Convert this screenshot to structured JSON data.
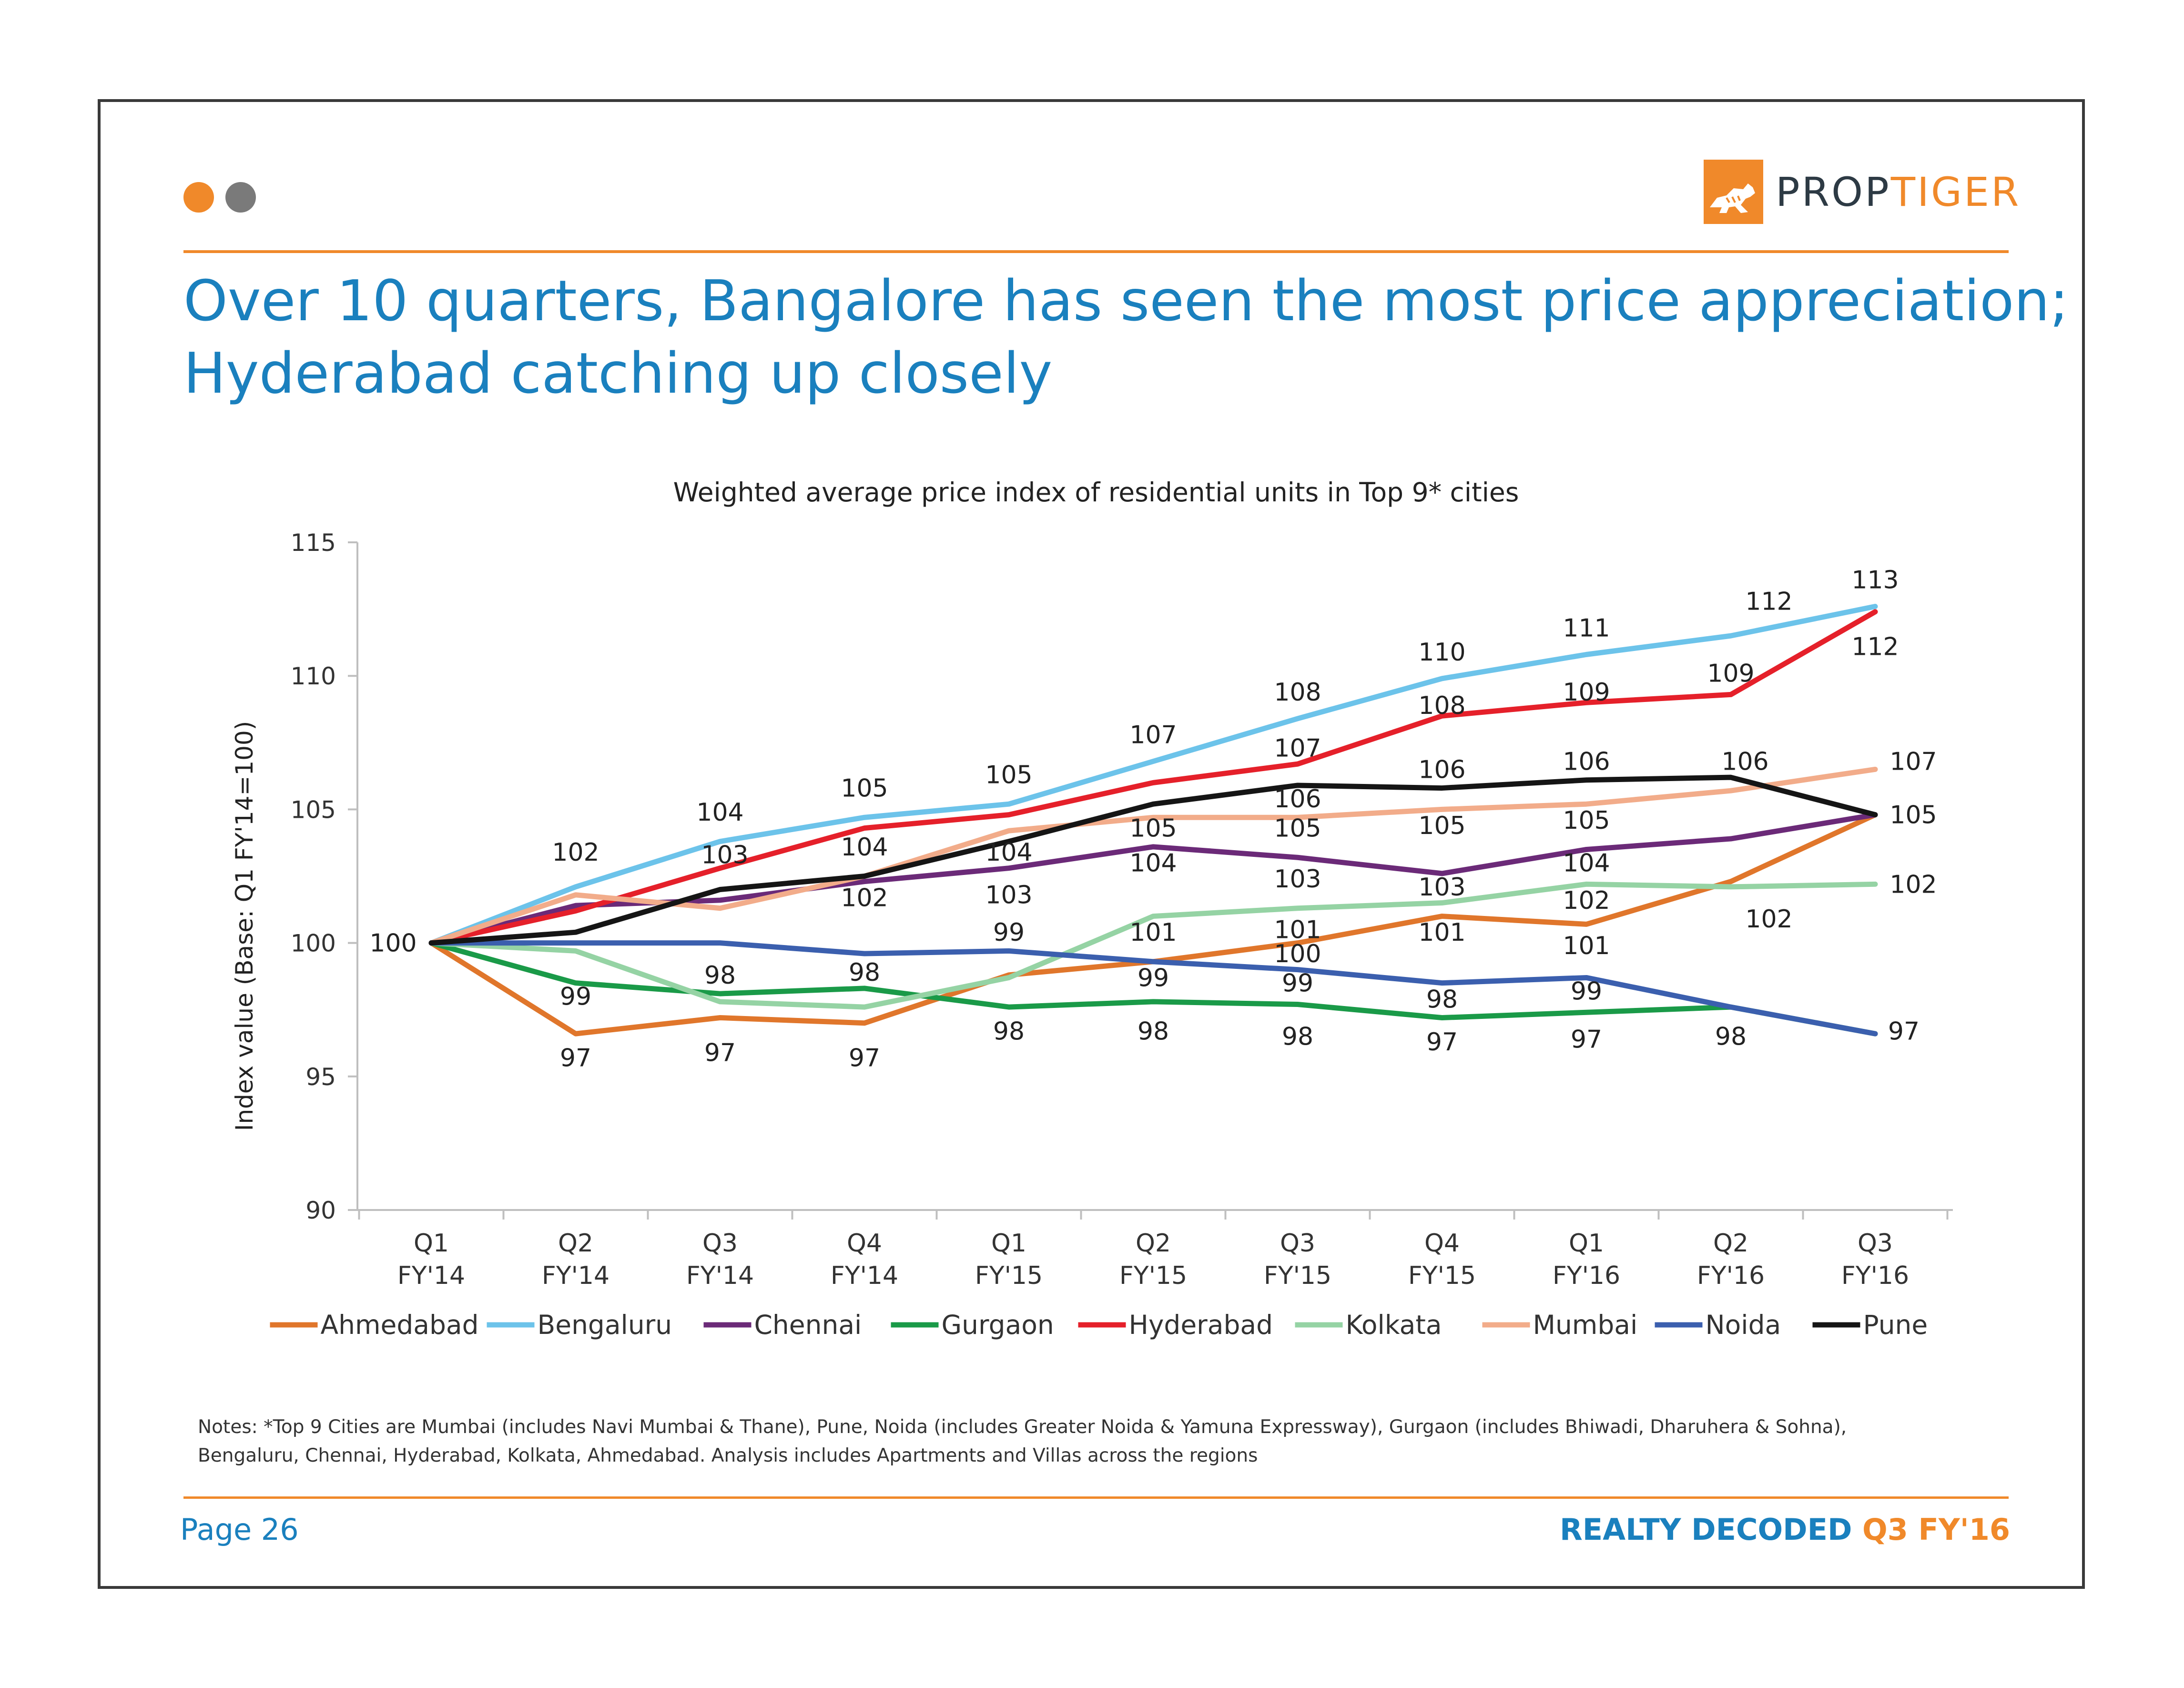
{
  "colors": {
    "accent": "#f0892a",
    "title": "#1a80be",
    "dot_orange": "#f0892a",
    "dot_gray": "#7a7a7a"
  },
  "logo": {
    "part1": "PROP",
    "part2": "TIGER",
    "icon": "tiger-icon"
  },
  "title": {
    "line1": "Over 10 quarters, Bangalore has seen the most price appreciation;",
    "line2": "Hyderabad catching up closely"
  },
  "chart_data": {
    "type": "line",
    "title": "Weighted average price index of residential units in Top 9* cities",
    "ylabel": "Index value (Base: Q1 FY'14=100)",
    "xlabel": "",
    "ylim": [
      90,
      115
    ],
    "yticks": [
      90,
      95,
      100,
      105,
      110,
      115
    ],
    "categories": [
      [
        "Q1",
        "FY'14"
      ],
      [
        "Q2",
        "FY'14"
      ],
      [
        "Q3",
        "FY'14"
      ],
      [
        "Q4",
        "FY'14"
      ],
      [
        "Q1",
        "FY'15"
      ],
      [
        "Q2",
        "FY'15"
      ],
      [
        "Q3",
        "FY'15"
      ],
      [
        "Q4",
        "FY'15"
      ],
      [
        "Q1",
        "FY'16"
      ],
      [
        "Q2",
        "FY'16"
      ],
      [
        "Q3",
        "FY'16"
      ]
    ],
    "series": [
      {
        "name": "Ahmedabad",
        "color": "#e0762b",
        "values": [
          100,
          96.6,
          97.2,
          97.0,
          98.8,
          99.3,
          100.0,
          101.0,
          100.7,
          102.3,
          104.8
        ]
      },
      {
        "name": "Bengaluru",
        "color": "#6cc3ea",
        "values": [
          100,
          102.1,
          103.8,
          104.7,
          105.2,
          106.8,
          108.4,
          109.9,
          110.8,
          111.5,
          112.6
        ]
      },
      {
        "name": "Chennai",
        "color": "#6b2a78",
        "values": [
          100,
          101.4,
          101.6,
          102.3,
          102.8,
          103.6,
          103.2,
          102.6,
          103.5,
          103.9,
          104.8
        ]
      },
      {
        "name": "Gurgaon",
        "color": "#1a9a48",
        "values": [
          100,
          98.5,
          98.1,
          98.3,
          97.6,
          97.8,
          97.7,
          97.2,
          97.4,
          97.6,
          96.6
        ]
      },
      {
        "name": "Hyderabad",
        "color": "#e5202a",
        "values": [
          100,
          101.2,
          102.8,
          104.3,
          104.8,
          106.0,
          106.7,
          108.5,
          109.0,
          109.3,
          112.4
        ]
      },
      {
        "name": "Kolkata",
        "color": "#95d3a4",
        "values": [
          100,
          99.7,
          97.8,
          97.6,
          98.7,
          101.0,
          101.3,
          101.5,
          102.2,
          102.1,
          102.2
        ]
      },
      {
        "name": "Mumbai",
        "color": "#f2ac8a",
        "values": [
          100,
          101.8,
          101.3,
          102.5,
          104.2,
          104.7,
          104.7,
          105.0,
          105.2,
          105.7,
          106.5
        ]
      },
      {
        "name": "Noida",
        "color": "#3b5fae",
        "values": [
          100,
          100.0,
          100.0,
          99.6,
          99.7,
          99.3,
          99.0,
          98.5,
          98.7,
          97.6,
          96.6
        ]
      },
      {
        "name": "Pune",
        "color": "#151515",
        "values": [
          100,
          100.4,
          102.0,
          102.5,
          103.8,
          105.2,
          105.9,
          105.8,
          106.1,
          106.2,
          104.8
        ]
      }
    ],
    "data_labels": [
      {
        "text": "100",
        "xi": 0,
        "y": 100,
        "dx": -80,
        "dy": 0
      },
      {
        "text": "102",
        "xi": 1,
        "y": 103.4,
        "dx": 0,
        "dy": 0
      },
      {
        "text": "99",
        "xi": 1,
        "y": 98.0,
        "dx": 0,
        "dy": 0
      },
      {
        "text": "97",
        "xi": 1,
        "y": 95.7,
        "dx": 0,
        "dy": 0
      },
      {
        "text": "104",
        "xi": 2,
        "y": 104.9,
        "dx": 0,
        "dy": 0
      },
      {
        "text": "103",
        "xi": 2,
        "y": 103.3,
        "dx": 10,
        "dy": 0
      },
      {
        "text": "98",
        "xi": 2,
        "y": 98.8,
        "dx": 0,
        "dy": 0
      },
      {
        "text": "97",
        "xi": 2,
        "y": 95.9,
        "dx": 0,
        "dy": 0
      },
      {
        "text": "105",
        "xi": 3,
        "y": 105.8,
        "dx": 0,
        "dy": 0
      },
      {
        "text": "104",
        "xi": 3,
        "y": 103.6,
        "dx": 0,
        "dy": 0
      },
      {
        "text": "102",
        "xi": 3,
        "y": 101.7,
        "dx": 0,
        "dy": 0
      },
      {
        "text": "98",
        "xi": 3,
        "y": 98.9,
        "dx": 0,
        "dy": 0
      },
      {
        "text": "97",
        "xi": 3,
        "y": 95.7,
        "dx": 0,
        "dy": 0
      },
      {
        "text": "105",
        "xi": 4,
        "y": 106.3,
        "dx": 0,
        "dy": 0
      },
      {
        "text": "104",
        "xi": 4,
        "y": 103.4,
        "dx": 0,
        "dy": 0
      },
      {
        "text": "103",
        "xi": 4,
        "y": 101.8,
        "dx": 0,
        "dy": 0
      },
      {
        "text": "99",
        "xi": 4,
        "y": 100.4,
        "dx": 0,
        "dy": 0
      },
      {
        "text": "98",
        "xi": 4,
        "y": 96.7,
        "dx": 0,
        "dy": 0
      },
      {
        "text": "107",
        "xi": 5,
        "y": 107.8,
        "dx": 0,
        "dy": 0
      },
      {
        "text": "105",
        "xi": 5,
        "y": 104.3,
        "dx": 0,
        "dy": 0
      },
      {
        "text": "104",
        "xi": 5,
        "y": 103.0,
        "dx": 0,
        "dy": 0
      },
      {
        "text": "101",
        "xi": 5,
        "y": 100.4,
        "dx": 0,
        "dy": 0
      },
      {
        "text": "99",
        "xi": 5,
        "y": 98.7,
        "dx": 0,
        "dy": 0
      },
      {
        "text": "98",
        "xi": 5,
        "y": 96.7,
        "dx": 0,
        "dy": 0
      },
      {
        "text": "108",
        "xi": 6,
        "y": 109.4,
        "dx": 0,
        "dy": 0
      },
      {
        "text": "107",
        "xi": 6,
        "y": 107.3,
        "dx": 0,
        "dy": 0
      },
      {
        "text": "106",
        "xi": 6,
        "y": 105.4,
        "dx": 0,
        "dy": 0
      },
      {
        "text": "105",
        "xi": 6,
        "y": 104.3,
        "dx": 0,
        "dy": 0
      },
      {
        "text": "103",
        "xi": 6,
        "y": 102.4,
        "dx": 0,
        "dy": 0
      },
      {
        "text": "101",
        "xi": 6,
        "y": 100.5,
        "dx": 0,
        "dy": 0
      },
      {
        "text": "100",
        "xi": 6,
        "y": 99.6,
        "dx": 0,
        "dy": 0
      },
      {
        "text": "99",
        "xi": 6,
        "y": 98.5,
        "dx": 0,
        "dy": 0
      },
      {
        "text": "98",
        "xi": 6,
        "y": 96.5,
        "dx": 0,
        "dy": 0
      },
      {
        "text": "110",
        "xi": 7,
        "y": 110.9,
        "dx": 0,
        "dy": 0
      },
      {
        "text": "108",
        "xi": 7,
        "y": 108.9,
        "dx": 0,
        "dy": 0
      },
      {
        "text": "106",
        "xi": 7,
        "y": 106.5,
        "dx": 0,
        "dy": 0
      },
      {
        "text": "105",
        "xi": 7,
        "y": 104.4,
        "dx": 0,
        "dy": 0
      },
      {
        "text": "103",
        "xi": 7,
        "y": 102.1,
        "dx": 0,
        "dy": 0
      },
      {
        "text": "101",
        "xi": 7,
        "y": 100.4,
        "dx": 0,
        "dy": 0
      },
      {
        "text": "98",
        "xi": 7,
        "y": 97.9,
        "dx": 0,
        "dy": 0
      },
      {
        "text": "97",
        "xi": 7,
        "y": 96.3,
        "dx": 0,
        "dy": 0
      },
      {
        "text": "111",
        "xi": 8,
        "y": 111.8,
        "dx": 0,
        "dy": 0
      },
      {
        "text": "109",
        "xi": 8,
        "y": 109.4,
        "dx": 0,
        "dy": 0
      },
      {
        "text": "106",
        "xi": 8,
        "y": 106.8,
        "dx": 0,
        "dy": 0
      },
      {
        "text": "105",
        "xi": 8,
        "y": 104.6,
        "dx": 0,
        "dy": 0
      },
      {
        "text": "104",
        "xi": 8,
        "y": 103.0,
        "dx": 0,
        "dy": 0
      },
      {
        "text": "102",
        "xi": 8,
        "y": 101.6,
        "dx": 0,
        "dy": 0
      },
      {
        "text": "101",
        "xi": 8,
        "y": 99.9,
        "dx": 0,
        "dy": 0
      },
      {
        "text": "99",
        "xi": 8,
        "y": 98.2,
        "dx": 0,
        "dy": 0
      },
      {
        "text": "97",
        "xi": 8,
        "y": 96.4,
        "dx": 0,
        "dy": 0
      },
      {
        "text": "112",
        "xi": 9,
        "y": 112.8,
        "dx": 80,
        "dy": 0
      },
      {
        "text": "109",
        "xi": 9,
        "y": 110.1,
        "dx": 0,
        "dy": 0
      },
      {
        "text": "106",
        "xi": 9,
        "y": 106.8,
        "dx": 30,
        "dy": 0
      },
      {
        "text": "102",
        "xi": 9,
        "y": 100.9,
        "dx": 80,
        "dy": 0
      },
      {
        "text": "98",
        "xi": 9,
        "y": 96.5,
        "dx": 0,
        "dy": 0
      },
      {
        "text": "113",
        "xi": 10,
        "y": 113.6,
        "dx": 0,
        "dy": 0
      },
      {
        "text": "112",
        "xi": 10,
        "y": 111.1,
        "dx": 0,
        "dy": 0
      },
      {
        "text": "107",
        "xi": 10,
        "y": 106.8,
        "dx": 80,
        "dy": 0
      },
      {
        "text": "105",
        "xi": 10,
        "y": 104.8,
        "dx": 80,
        "dy": 0
      },
      {
        "text": "102",
        "xi": 10,
        "y": 102.2,
        "dx": 80,
        "dy": 0
      },
      {
        "text": "97",
        "xi": 10,
        "y": 96.7,
        "dx": 60,
        "dy": 0
      }
    ]
  },
  "notes": {
    "line1": "Notes: *Top 9 Cities are Mumbai (includes Navi Mumbai & Thane), Pune, Noida (includes Greater Noida & Yamuna Expressway), Gurgaon (includes Bhiwadi, Dharuhera & Sohna),",
    "line2": "Bengaluru, Chennai, Hyderabad, Kolkata, Ahmedabad. Analysis includes Apartments and Villas across the regions"
  },
  "footer": {
    "page": "Page 26",
    "brand_part1": "REALTY DECODED ",
    "brand_part2": "Q3 FY'16"
  }
}
